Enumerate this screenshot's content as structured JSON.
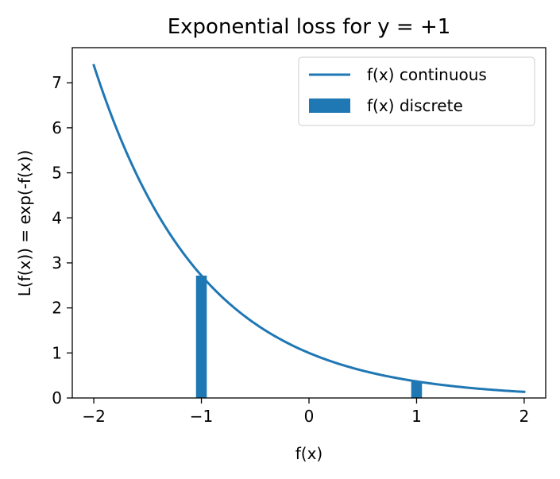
{
  "chart_data": {
    "type": "line",
    "title": "Exponential loss for y = +1",
    "xlabel": "f(x)",
    "ylabel": "L(f(x)) = exp(-f(x))",
    "xlim": [
      -2.2,
      2.2
    ],
    "ylim": [
      0,
      7.78
    ],
    "xticks": [
      -2,
      -1,
      0,
      1,
      2
    ],
    "xtick_labels": [
      "−2",
      "−1",
      "0",
      "1",
      "2"
    ],
    "yticks": [
      0,
      1,
      2,
      3,
      4,
      5,
      6,
      7
    ],
    "ytick_labels": [
      "0",
      "1",
      "2",
      "3",
      "4",
      "5",
      "6",
      "7"
    ],
    "grid": false,
    "legend_position": "top-right",
    "series": [
      {
        "name": "f(x) continuous",
        "type": "line",
        "color": "#1f77b4",
        "function": "exp(-x)",
        "x_range": [
          -2,
          2
        ]
      },
      {
        "name": "f(x) discrete",
        "type": "bar",
        "color": "#1f77b4",
        "x": [
          -1,
          1
        ],
        "values": [
          2.718,
          0.368
        ],
        "bar_width": 0.1
      }
    ]
  }
}
